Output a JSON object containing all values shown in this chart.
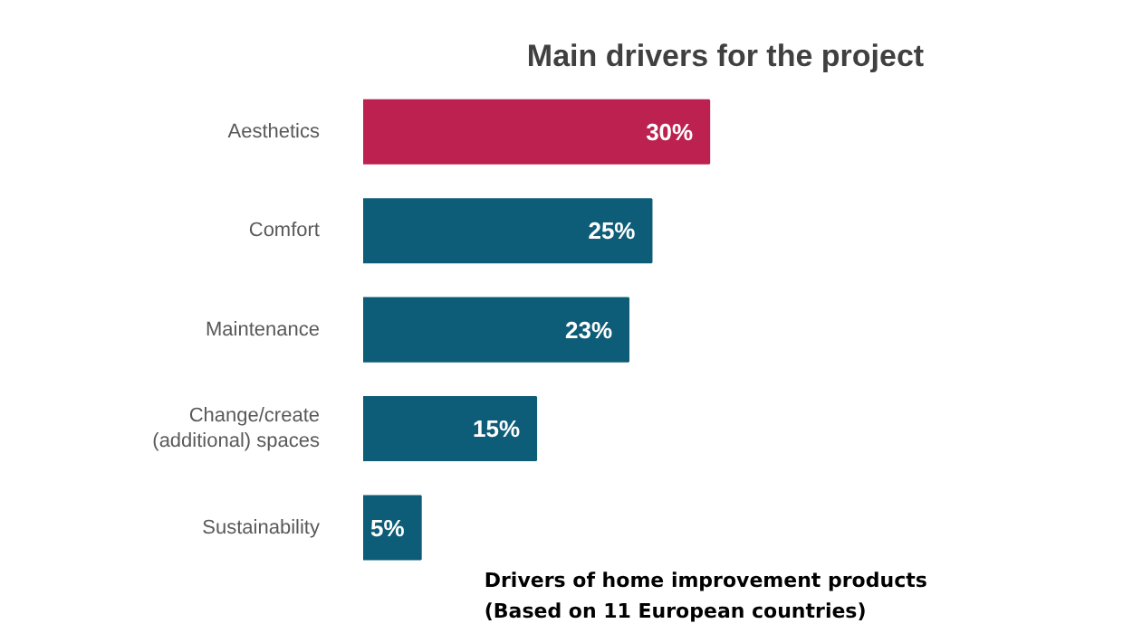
{
  "chart_data": {
    "type": "bar",
    "orientation": "horizontal",
    "title": "Main drivers for the project",
    "categories": [
      "Aesthetics",
      "Comfort",
      "Maintenance",
      "Change/create (additional) spaces",
      "Sustainability"
    ],
    "values": [
      30,
      25,
      23,
      15,
      5
    ],
    "colors": [
      "#bc2150",
      "#0d5c78",
      "#0d5c78",
      "#0d5c78",
      "#0d5c78"
    ],
    "value_labels": [
      "30%",
      "25%",
      "23%",
      "15%",
      "5%"
    ],
    "annotations": [
      "Drivers of home improvement products",
      "(Based on 11 European countries)"
    ],
    "grid": false
  }
}
